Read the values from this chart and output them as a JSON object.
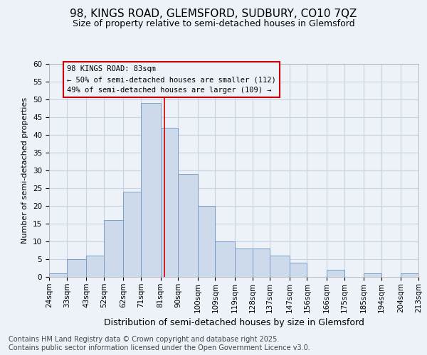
{
  "title1": "98, KINGS ROAD, GLEMSFORD, SUDBURY, CO10 7QZ",
  "title2": "Size of property relative to semi-detached houses in Glemsford",
  "xlabel": "Distribution of semi-detached houses by size in Glemsford",
  "ylabel": "Number of semi-detached properties",
  "footer1": "Contains HM Land Registry data © Crown copyright and database right 2025.",
  "footer2": "Contains public sector information licensed under the Open Government Licence v3.0.",
  "bin_edges": [
    24,
    33,
    43,
    52,
    62,
    71,
    81,
    90,
    100,
    109,
    119,
    128,
    137,
    147,
    156,
    166,
    175,
    185,
    194,
    204,
    213
  ],
  "counts": [
    1,
    5,
    6,
    16,
    24,
    49,
    42,
    29,
    20,
    10,
    8,
    8,
    6,
    4,
    0,
    2,
    0,
    1,
    0,
    1
  ],
  "bar_color": "#ccdaeb",
  "bar_edge_color": "#7a9fc4",
  "grid_color": "#c8d4e4",
  "bg_color": "#edf1f8",
  "vline_x": 83,
  "vline_color": "#cc0000",
  "ann_box_color": "#cc0000",
  "ann_text1": "98 KINGS ROAD: 83sqm",
  "ann_text2": "← 50% of semi-detached houses are smaller (112)",
  "ann_text3": "49% of semi-detached houses are larger (109) →",
  "tick_labels": [
    "24sqm",
    "33sqm",
    "43sqm",
    "52sqm",
    "62sqm",
    "71sqm",
    "81sqm",
    "90sqm",
    "100sqm",
    "109sqm",
    "119sqm",
    "128sqm",
    "137sqm",
    "147sqm",
    "156sqm",
    "166sqm",
    "175sqm",
    "185sqm",
    "194sqm",
    "204sqm",
    "213sqm"
  ],
  "ylim": [
    0,
    60
  ],
  "yticks": [
    0,
    5,
    10,
    15,
    20,
    25,
    30,
    35,
    40,
    45,
    50,
    55,
    60
  ],
  "title1_fontsize": 11,
  "title2_fontsize": 9,
  "ylabel_fontsize": 8,
  "xlabel_fontsize": 9,
  "tick_fontsize": 7.5,
  "footer_fontsize": 7
}
